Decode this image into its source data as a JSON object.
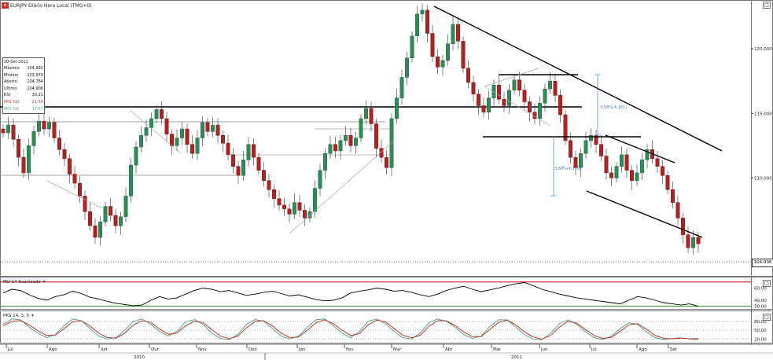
{
  "window": {
    "title": "EURJPY Diário Hora Local (TMG+0)",
    "ticker_icon": "chart-icon",
    "panel_buttons": [
      "□",
      "□",
      "□"
    ]
  },
  "info_box": {
    "date": "20-Set-2011",
    "rows": [
      {
        "label": "Máximo",
        "value": "104,992"
      },
      {
        "label": "Mínimo",
        "value": "103,970"
      },
      {
        "label": "Aberto",
        "value": "104,784"
      },
      {
        "label": "Último",
        "value": "104,906"
      },
      {
        "label": "RSI",
        "value": "30,21"
      },
      {
        "label": "PKS %D",
        "value": "21,39",
        "color": "#c0392b"
      },
      {
        "label": "PKS %K",
        "value": "17,57",
        "color": "#5aa88a"
      }
    ]
  },
  "panels": {
    "rsi_label": "RSI 14 Suavizado",
    "stoch_label": "PKS 14, 3, 5"
  },
  "chart_data": [
    {
      "type": "candlestick",
      "title": "EURJPY Diário Hora Local (TMG+0)",
      "y_axis": {
        "ticks": [
          {
            "value": 120,
            "label": "120,000"
          },
          {
            "value": 115,
            "label": "115,000"
          },
          {
            "value": 110,
            "label": "110,000"
          }
        ],
        "ylim": [
          102.6,
          123.3
        ]
      },
      "last_price": {
        "value": 104.906,
        "label": "104,906"
      },
      "x_axis": {
        "months": [
          "Jul",
          "Ago",
          "Set",
          "Out",
          "Nov",
          "Dez",
          "Jan",
          "Fev",
          "Mar",
          "Abr",
          "Mai",
          "Jun",
          "Jul",
          "Ago",
          "Set"
        ],
        "years": [
          "2010",
          "2011"
        ]
      },
      "close_series": [
        113.5,
        114.1,
        113.0,
        111.6,
        110.4,
        112.5,
        113.6,
        114.4,
        113.8,
        114.3,
        113.1,
        112.2,
        111.5,
        110.3,
        109.6,
        108.6,
        107.4,
        106.3,
        105.4,
        106.6,
        107.8,
        107.1,
        106.3,
        107.0,
        108.6,
        111.0,
        112.4,
        113.3,
        113.9,
        114.6,
        115.3,
        114.6,
        113.4,
        112.5,
        113.1,
        113.8,
        112.6,
        111.9,
        113.1,
        114.3,
        113.6,
        114.1,
        113.3,
        112.7,
        111.8,
        110.9,
        110.2,
        111.4,
        112.6,
        111.6,
        110.6,
        109.8,
        109.1,
        108.4,
        107.9,
        107.6,
        107.2,
        108.1,
        107.5,
        106.9,
        107.4,
        109.2,
        110.6,
        111.9,
        112.6,
        112.1,
        112.9,
        113.3,
        112.5,
        113.1,
        114.6,
        115.4,
        114.2,
        112.3,
        111.6,
        110.8,
        114.6,
        116.2,
        117.8,
        119.3,
        121.0,
        122.7,
        123.0,
        121.2,
        119.4,
        118.6,
        119.1,
        120.4,
        121.9,
        120.6,
        118.5,
        117.4,
        116.5,
        115.6,
        115.1,
        116.2,
        117.2,
        116.1,
        115.6,
        116.8,
        117.6,
        116.8,
        115.9,
        115.1,
        114.6,
        115.8,
        116.9,
        117.5,
        116.4,
        114.9,
        112.9,
        111.6,
        110.8,
        111.9,
        112.9,
        113.3,
        112.6,
        111.7,
        110.4,
        110.0,
        110.9,
        111.8,
        110.6,
        109.8,
        110.4,
        111.4,
        112.2,
        111.5,
        110.9,
        110.2,
        109.1,
        108.1,
        106.9,
        105.6,
        104.6,
        105.4,
        104.9
      ],
      "annotations": [
        "3,58%(4,181)",
        "3,68%(4,179)"
      ]
    },
    {
      "type": "line",
      "title": "RSI 14 Suavizado",
      "y_axis": {
        "ticks": [
          {
            "value": 60,
            "label": "60,00"
          },
          {
            "value": 40,
            "label": "40,00"
          },
          {
            "value": 30,
            "label": "30,00"
          }
        ],
        "ylim": [
          27,
          71
        ]
      },
      "levels": {
        "upper": 70,
        "lower": 30
      },
      "series": [
        {
          "values": [
            52,
            58,
            56,
            49,
            43,
            40,
            46,
            49,
            55,
            51,
            45,
            42,
            38,
            35,
            33,
            31,
            32,
            40,
            46,
            42,
            44,
            50,
            56,
            60,
            58,
            54,
            56,
            52,
            48,
            50,
            53,
            55,
            51,
            47,
            49,
            45,
            41,
            39,
            40,
            44,
            52,
            55,
            57,
            60,
            58,
            55,
            56,
            53,
            49,
            46,
            50,
            56,
            60,
            63,
            58,
            54,
            57,
            60,
            64,
            67,
            69,
            64,
            58,
            54,
            50,
            47,
            44,
            42,
            40,
            38,
            36,
            34,
            40,
            46,
            44,
            40,
            36,
            34,
            32,
            34,
            30
          ]
        }
      ]
    },
    {
      "type": "line",
      "title": "PKS 14, 3, 5",
      "y_axis": {
        "ticks": [
          {
            "value": 80,
            "label": "80,00"
          },
          {
            "value": 50,
            "label": "50,00"
          },
          {
            "value": 20,
            "label": "20,00"
          }
        ],
        "ylim": [
          5,
          98
        ]
      },
      "series": [
        {
          "values": [
            70,
            88,
            85,
            60,
            40,
            25,
            35,
            65,
            88,
            82,
            55,
            30,
            20,
            25,
            50,
            80,
            88,
            70,
            45,
            30,
            45,
            78,
            86,
            70,
            40,
            22,
            18,
            35,
            70,
            86,
            80,
            55,
            30,
            20,
            30,
            60,
            85,
            88,
            65,
            40,
            25,
            45,
            80,
            88,
            72,
            45,
            25,
            20,
            40,
            75,
            88,
            80,
            60,
            35,
            22,
            30,
            62,
            85,
            85,
            60,
            35,
            20,
            18,
            40,
            72,
            85,
            70,
            45,
            25,
            18,
            30,
            55,
            75,
            70,
            45,
            25,
            18,
            22,
            24,
            20,
            17.57
          ]
        },
        {
          "values": [
            65,
            80,
            82,
            68,
            48,
            32,
            34,
            55,
            78,
            82,
            64,
            40,
            25,
            23,
            40,
            68,
            82,
            76,
            54,
            36,
            40,
            65,
            80,
            76,
            52,
            30,
            21,
            30,
            58,
            80,
            82,
            64,
            40,
            25,
            27,
            50,
            75,
            85,
            72,
            50,
            32,
            38,
            68,
            84,
            78,
            55,
            33,
            24,
            33,
            63,
            82,
            82,
            66,
            44,
            28,
            28,
            52,
            76,
            84,
            68,
            44,
            27,
            20,
            32,
            60,
            80,
            74,
            52,
            32,
            22,
            26,
            46,
            68,
            72,
            54,
            33,
            22,
            21,
            23,
            21,
            21.39
          ]
        }
      ],
      "series_colors": [
        "#5aa88a",
        "#c0392b"
      ]
    }
  ]
}
